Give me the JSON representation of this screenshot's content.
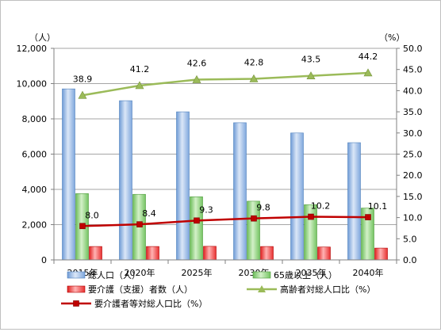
{
  "chart_data": {
    "type": "bar",
    "categories": [
      "2015年",
      "2020年",
      "2025年",
      "2030年",
      "2035年",
      "2040年"
    ],
    "left_unit": "（人）",
    "right_unit": "（%）",
    "ylim_left": [
      0,
      12000
    ],
    "ylim_right": [
      0,
      50
    ],
    "left_ticks": [
      "0",
      "2,000",
      "4,000",
      "6,000",
      "8,000",
      "10,000",
      "12,000"
    ],
    "right_ticks": [
      "0.0",
      "5.0",
      "10.0",
      "15.0",
      "20.0",
      "25.0",
      "30.0",
      "35.0",
      "40.0",
      "45.0",
      "50.0"
    ],
    "grid": true,
    "legend_position": "bottom",
    "series": [
      {
        "name": "総人口（人）",
        "kind": "bar",
        "axis": "left",
        "color": "#8eb4e3",
        "values": [
          9700,
          9030,
          8400,
          7780,
          7200,
          6650
        ]
      },
      {
        "name": "65歳以上（人）",
        "kind": "bar",
        "axis": "left",
        "color": "#8fd17f",
        "values": [
          3760,
          3720,
          3580,
          3330,
          3130,
          2940
        ]
      },
      {
        "name": "要介護（支援）者数（人）",
        "kind": "bar",
        "axis": "left",
        "color": "#ff4d4d",
        "values": [
          760,
          760,
          770,
          760,
          730,
          670
        ]
      },
      {
        "name": "高齢者対総人口比（%）",
        "kind": "line",
        "axis": "right",
        "color": "#9bbb59",
        "marker": "triangle",
        "values": [
          38.9,
          41.2,
          42.6,
          42.8,
          43.5,
          44.2
        ],
        "labels": [
          "38.9",
          "41.2",
          "42.6",
          "42.8",
          "43.5",
          "44.2"
        ]
      },
      {
        "name": "要介護者等対総人口比（%）",
        "kind": "line",
        "axis": "right",
        "color": "#c00000",
        "marker": "square",
        "values": [
          8.0,
          8.4,
          9.3,
          9.8,
          10.2,
          10.1
        ],
        "labels": [
          "8.0",
          "8.4",
          "9.3",
          "9.8",
          "10.2",
          "10.1"
        ]
      }
    ]
  }
}
